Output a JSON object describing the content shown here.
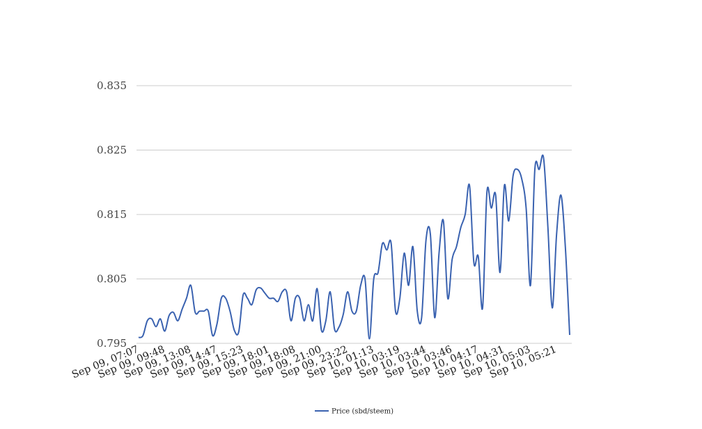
{
  "chart_data": {
    "type": "line",
    "title": "",
    "xlabel": "",
    "ylabel": "",
    "ylim": [
      0.795,
      0.835
    ],
    "y_ticks": [
      "0.835",
      "0.825",
      "0.815",
      "0.805",
      "0.795"
    ],
    "y_tick_values": [
      0.835,
      0.825,
      0.815,
      0.805,
      0.795
    ],
    "grid": true,
    "legend_position": "bottom",
    "x_tick_labels": [
      "Sep 09, 07:07",
      "Sep 09, 09:48",
      "Sep 09, 13:08",
      "Sep 09, 14:47",
      "Sep 09, 15:23",
      "Sep 09, 18:01",
      "Sep 09, 18:08",
      "Sep 09, 21:00",
      "Sep 09, 23:22",
      "Sep 10, 01:13",
      "Sep 10, 03:19",
      "Sep 10, 03:44",
      "Sep 10, 03:46",
      "Sep 10, 04:17",
      "Sep 10, 04:31",
      "Sep 10, 05:03",
      "Sep 10, 05:21"
    ],
    "series": [
      {
        "name": "Price (sbd/steem)",
        "color": "#3a62b0",
        "values": [
          0.7959,
          0.7962,
          0.7985,
          0.7988,
          0.7976,
          0.7988,
          0.7969,
          0.7993,
          0.7998,
          0.7985,
          0.8003,
          0.802,
          0.804,
          0.7998,
          0.8,
          0.8,
          0.8,
          0.7962,
          0.798,
          0.802,
          0.802,
          0.8,
          0.797,
          0.7968,
          0.8025,
          0.802,
          0.801,
          0.8033,
          0.8036,
          0.8028,
          0.802,
          0.802,
          0.8015,
          0.803,
          0.803,
          0.7985,
          0.802,
          0.802,
          0.7985,
          0.801,
          0.7985,
          0.8035,
          0.797,
          0.7985,
          0.803,
          0.7972,
          0.7975,
          0.7995,
          0.803,
          0.8,
          0.8,
          0.804,
          0.805,
          0.7957,
          0.805,
          0.806,
          0.8105,
          0.8095,
          0.8105,
          0.8,
          0.802,
          0.809,
          0.804,
          0.81,
          0.8,
          0.799,
          0.811,
          0.812,
          0.799,
          0.809,
          0.814,
          0.802,
          0.808,
          0.81,
          0.813,
          0.815,
          0.8195,
          0.8075,
          0.8085,
          0.8005,
          0.8185,
          0.816,
          0.818,
          0.806,
          0.8195,
          0.814,
          0.821,
          0.822,
          0.8205,
          0.816,
          0.804,
          0.822,
          0.822,
          0.8238,
          0.813,
          0.8005,
          0.812,
          0.818,
          0.81,
          0.7963
        ]
      }
    ]
  }
}
